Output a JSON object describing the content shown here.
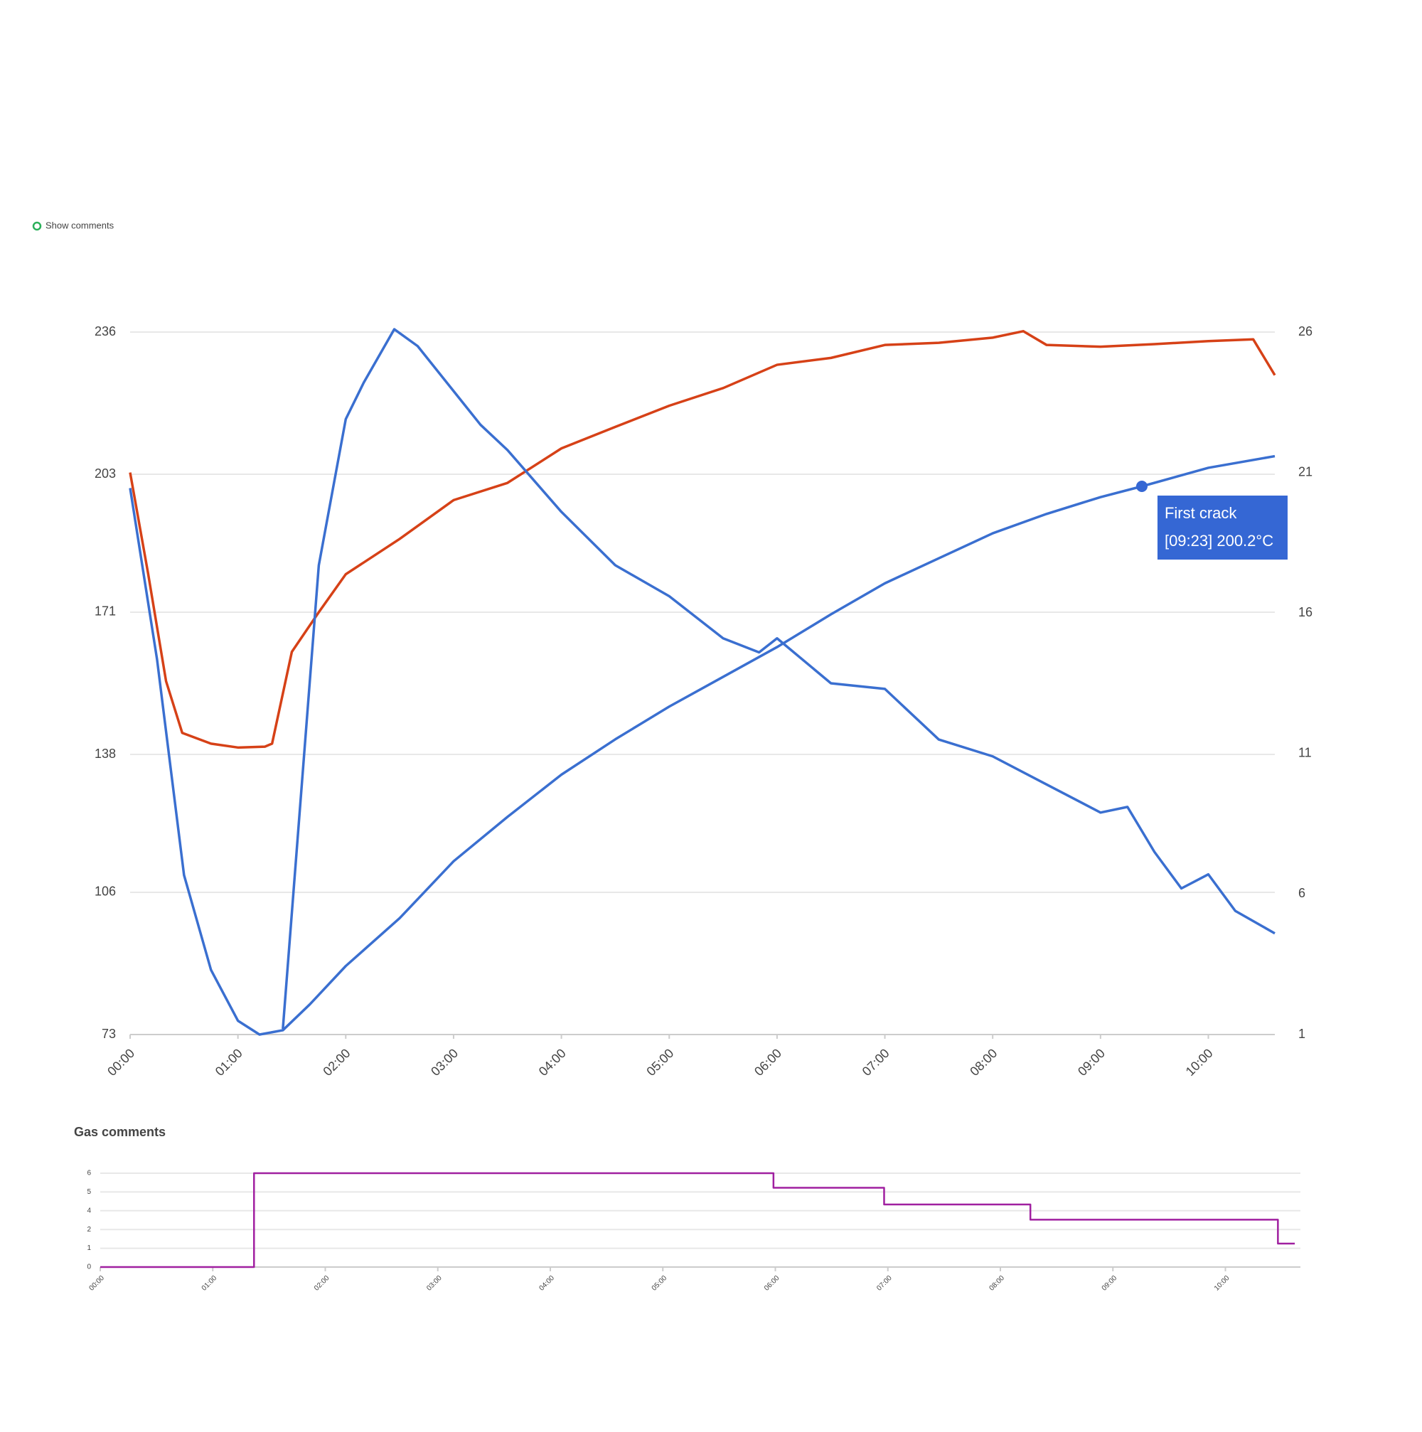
{
  "toggle": {
    "label": "Show comments"
  },
  "chart_data": [
    {
      "type": "line",
      "xlim": [
        0,
        637
      ],
      "ylim": [
        73,
        236
      ],
      "y2lim": [
        1,
        26
      ],
      "yticks": [
        73,
        106,
        138,
        171,
        203,
        236
      ],
      "y2ticks": [
        1,
        6,
        11,
        16,
        21,
        26
      ],
      "xticks": [
        {
          "value": 0,
          "label": "00:00"
        },
        {
          "value": 60,
          "label": "01:00"
        },
        {
          "value": 120,
          "label": "02:00"
        },
        {
          "value": 180,
          "label": "03:00"
        },
        {
          "value": 240,
          "label": "04:00"
        },
        {
          "value": 300,
          "label": "05:00"
        },
        {
          "value": 360,
          "label": "06:00"
        },
        {
          "value": 420,
          "label": "07:00"
        },
        {
          "value": 480,
          "label": "08:00"
        },
        {
          "value": 540,
          "label": "09:00"
        },
        {
          "value": 600,
          "label": "10:00"
        }
      ],
      "grid": true,
      "series": [
        {
          "color": "#d64117",
          "axis": "y",
          "x": [
            0,
            10,
            20,
            29,
            45,
            60,
            75,
            79,
            90,
            105,
            120,
            150,
            180,
            210,
            240,
            270,
            300,
            330,
            360,
            390,
            420,
            450,
            480,
            497,
            510,
            540,
            570,
            600,
            625,
            637
          ],
          "values": [
            203.4,
            180,
            155,
            143,
            140.5,
            139.6,
            139.8,
            140.5,
            161.8,
            171,
            179.8,
            188,
            197,
            201,
            209,
            214,
            218.9,
            223,
            228.4,
            230,
            233,
            233.5,
            234.7,
            236.2,
            233,
            232.6,
            233.2,
            233.9,
            234.3,
            226
          ]
        },
        {
          "color": "#3a6fd0",
          "axis": "y",
          "x": [
            0,
            15,
            30,
            45,
            60,
            72,
            85,
            100,
            120,
            150,
            180,
            210,
            240,
            270,
            300,
            330,
            360,
            390,
            420,
            450,
            480,
            510,
            540,
            563,
            600,
            637
          ],
          "values": [
            199.8,
            160,
            110,
            88,
            76.2,
            73,
            74,
            80,
            88.9,
            100,
            113.2,
            123.5,
            133.3,
            141.5,
            149.1,
            156,
            162.9,
            170.5,
            177.7,
            183.5,
            189.3,
            193.8,
            197.7,
            200.2,
            204.5,
            207.2
          ]
        },
        {
          "color": "#3a6fd0",
          "axis": "y2",
          "x": [
            85,
            105,
            120,
            130,
            147,
            160,
            180,
            195,
            210,
            240,
            270,
            300,
            330,
            350,
            360,
            390,
            420,
            450,
            480,
            510,
            540,
            555,
            570,
            585,
            600,
            615,
            637
          ],
          "values": [
            1.2,
            17.7,
            22.9,
            24.2,
            26.1,
            25.5,
            23.9,
            22.7,
            21.8,
            19.6,
            17.7,
            16.6,
            15.1,
            14.6,
            15.1,
            13.5,
            13.3,
            11.5,
            10.9,
            9.9,
            8.9,
            9.1,
            7.5,
            6.2,
            6.7,
            5.4,
            4.6
          ]
        }
      ],
      "annotation": {
        "label": "First crack",
        "text": "[09:23] 200.2°C",
        "x": 563,
        "y": 200.2,
        "color": "#3567d4"
      }
    },
    {
      "type": "line",
      "title": "Gas comments",
      "step": "after",
      "xlim": [
        0,
        640
      ],
      "ylim": [
        0,
        6
      ],
      "yticks": [
        0,
        {
          "value": 1.2,
          "label": "1"
        },
        {
          "value": 2.4,
          "label": "2"
        },
        {
          "value": 3.6,
          "label": "4"
        },
        {
          "value": 4.8,
          "label": "5"
        },
        6
      ],
      "xticks": [
        {
          "value": 0,
          "label": "00:00"
        },
        {
          "value": 60,
          "label": "01:00"
        },
        {
          "value": 120,
          "label": "02:00"
        },
        {
          "value": 180,
          "label": "03:00"
        },
        {
          "value": 240,
          "label": "04:00"
        },
        {
          "value": 300,
          "label": "05:00"
        },
        {
          "value": 360,
          "label": "06:00"
        },
        {
          "value": 420,
          "label": "07:00"
        },
        {
          "value": 480,
          "label": "08:00"
        },
        {
          "value": 540,
          "label": "09:00"
        },
        {
          "value": 600,
          "label": "10:00"
        }
      ],
      "grid": true,
      "series": [
        {
          "color": "#a020a0",
          "axis": "y",
          "x": [
            0,
            82,
            359,
            418,
            496,
            628,
            637
          ],
          "values": [
            0,
            6,
            5.07,
            4,
            3.03,
            1.5,
            1.5
          ]
        }
      ]
    }
  ]
}
